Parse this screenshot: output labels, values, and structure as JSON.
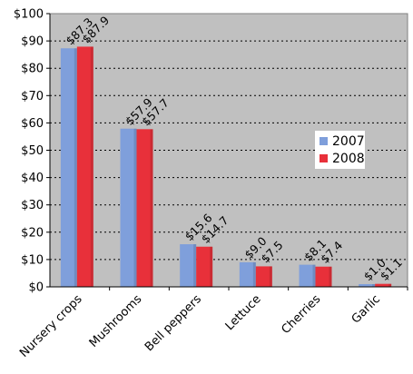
{
  "chart_data": {
    "type": "bar",
    "categories": [
      "Nursery crops",
      "Mushrooms",
      "Bell peppers",
      "Lettuce",
      "Cherries",
      "Garlic"
    ],
    "series": [
      {
        "name": "2007",
        "values": [
          87.3,
          57.9,
          15.6,
          9.0,
          8.1,
          1.0
        ],
        "labels": [
          "$87.3",
          "$57.9",
          "$15.6",
          "$9.0",
          "$8.1",
          "$1.0"
        ]
      },
      {
        "name": "2008",
        "values": [
          87.9,
          57.7,
          14.7,
          7.5,
          7.4,
          1.1
        ],
        "labels": [
          "$87.9",
          "$57.7",
          "$14.7",
          "$7.5",
          "$7.4",
          "$1.1"
        ]
      }
    ],
    "ylim": [
      0,
      100
    ],
    "yticks": [
      0,
      10,
      20,
      30,
      40,
      50,
      60,
      70,
      80,
      90,
      100
    ],
    "ytick_labels": [
      "$0",
      "$10",
      "$20",
      "$30",
      "$40",
      "$50",
      "$60",
      "$70",
      "$80",
      "$90",
      "$100"
    ],
    "title": "",
    "xlabel": "",
    "ylabel": "",
    "grid": true,
    "legend_position": "right",
    "colors": {
      "series_2007": "#7f9fdb",
      "series_2008": "#e8303a",
      "plot_background": "#c0c0c0",
      "gridline": "#000000"
    }
  }
}
